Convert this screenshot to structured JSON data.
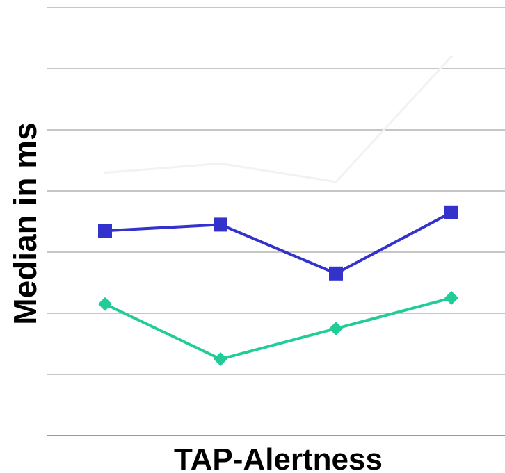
{
  "chart_data": {
    "type": "line",
    "title": "",
    "xlabel": "TAP-Alertness",
    "ylabel": "Median in ms",
    "ylim": [
      0,
      7
    ],
    "gridlines": [
      0,
      1,
      2,
      3,
      4,
      5,
      6,
      7
    ],
    "grid": true,
    "legend": "none",
    "categories": [
      "",
      "",
      "",
      ""
    ],
    "series": [
      {
        "values": [
          4.3,
          4.45,
          4.15,
          6.2
        ],
        "color": "#f2f2f2",
        "marker": "line"
      },
      {
        "values": [
          3.35,
          3.45,
          2.65,
          3.65
        ],
        "color": "#3333cc",
        "marker": "square"
      },
      {
        "values": [
          2.15,
          1.25,
          1.75,
          2.25
        ],
        "color": "#22cc99",
        "marker": "diamond"
      }
    ]
  }
}
